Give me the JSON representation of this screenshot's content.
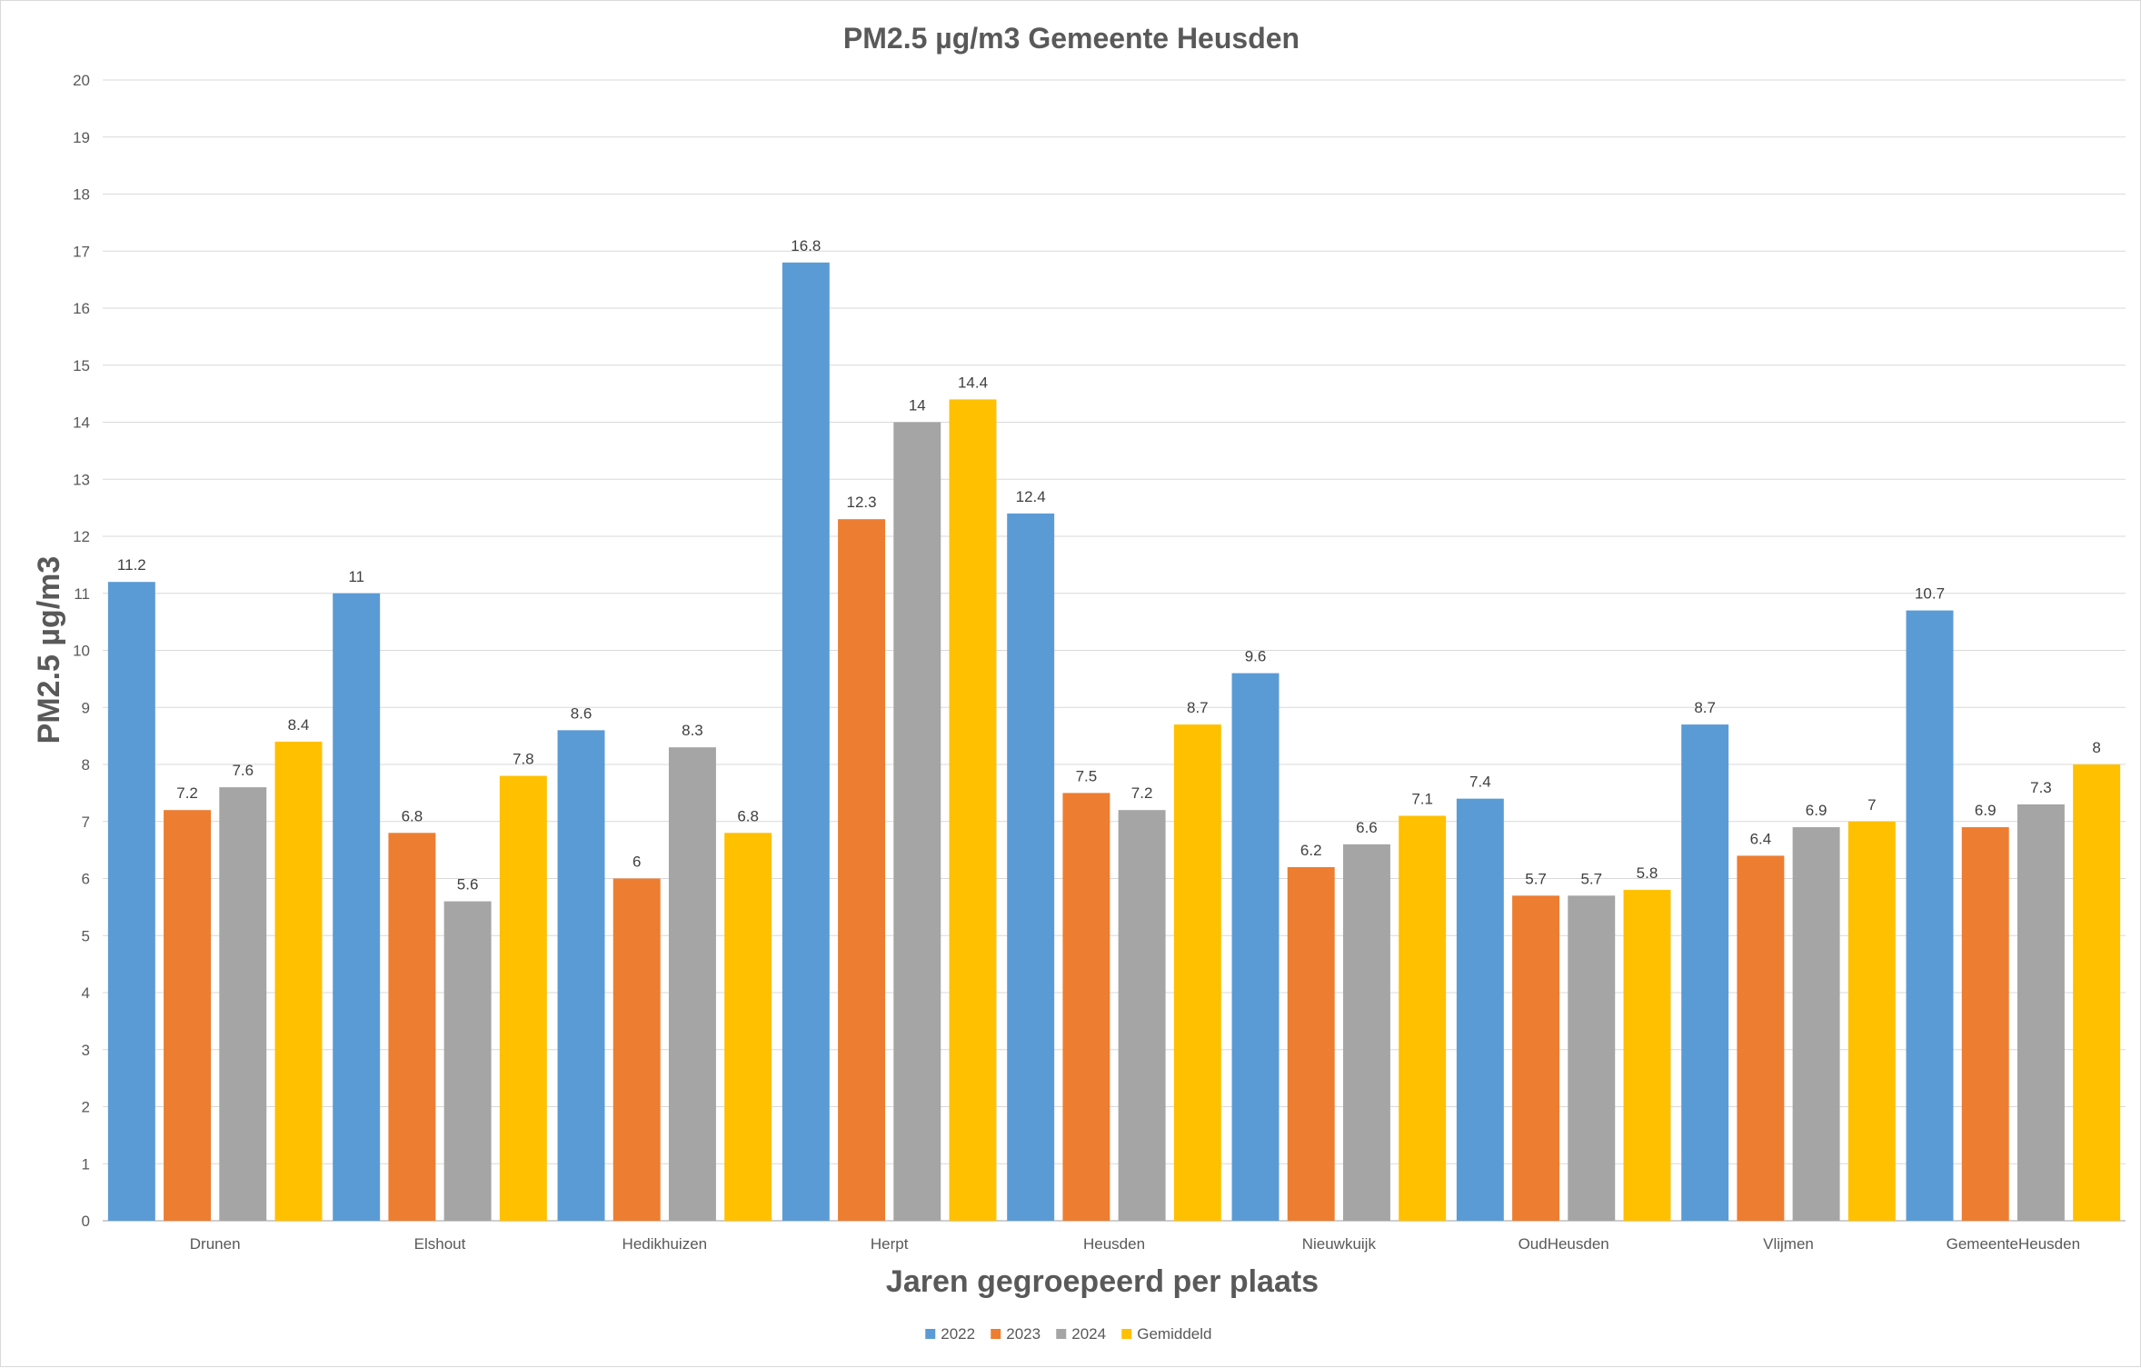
{
  "chart_data": {
    "type": "bar",
    "title": "PM2.5 µg/m3 Gemeente Heusden",
    "xlabel": "Jaren gegroepeerd per plaats",
    "ylabel": "PM2.5 µg/m3",
    "ylim": [
      0,
      20
    ],
    "y_ticks": [
      "0",
      "1",
      "2",
      "3",
      "4",
      "5",
      "6",
      "7",
      "8",
      "9",
      "10",
      "11",
      "12",
      "13",
      "14",
      "15",
      "16",
      "17",
      "18",
      "19",
      "20"
    ],
    "grid": true,
    "legend_position": "bottom",
    "categories": [
      "Drunen",
      "Elshout",
      "Hedikhuizen",
      "Herpt",
      "Heusden",
      "Nieuwkuijk",
      "OudHeusden",
      "Vlijmen",
      "GemeenteHeusden"
    ],
    "series": [
      {
        "name": "2022",
        "color": "#5b9bd5",
        "values": [
          11.2,
          11,
          8.6,
          16.8,
          12.4,
          9.6,
          7.4,
          8.7,
          10.7
        ]
      },
      {
        "name": "2023",
        "color": "#ed7d31",
        "values": [
          7.2,
          6.8,
          6,
          12.3,
          7.5,
          6.2,
          5.7,
          6.4,
          6.9
        ]
      },
      {
        "name": "2024",
        "color": "#a5a5a5",
        "values": [
          7.6,
          5.6,
          8.3,
          14,
          7.2,
          6.6,
          5.7,
          6.9,
          7.3
        ]
      },
      {
        "name": "Gemiddeld",
        "color": "#ffc000",
        "values": [
          8.4,
          7.8,
          6.8,
          14.4,
          8.7,
          7.1,
          5.8,
          7,
          8
        ]
      }
    ]
  }
}
